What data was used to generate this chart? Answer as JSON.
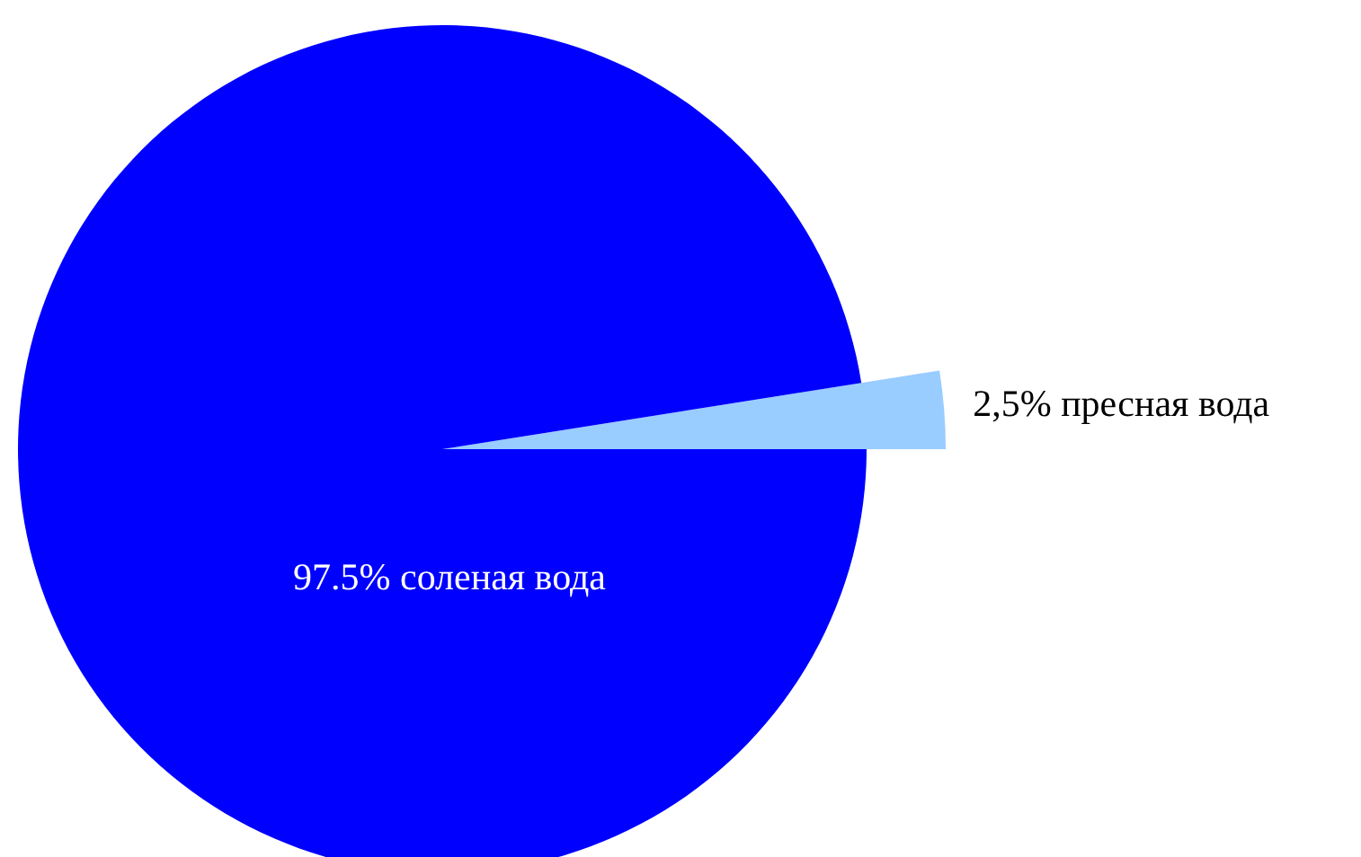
{
  "chart_data": {
    "type": "pie",
    "categories": [
      "соленая вода",
      "пресная вода"
    ],
    "values": [
      97.5,
      2.5
    ],
    "value_labels": [
      "97.5%",
      "2,5%"
    ],
    "colors": [
      "#0000ff",
      "#99ccff"
    ]
  }
}
